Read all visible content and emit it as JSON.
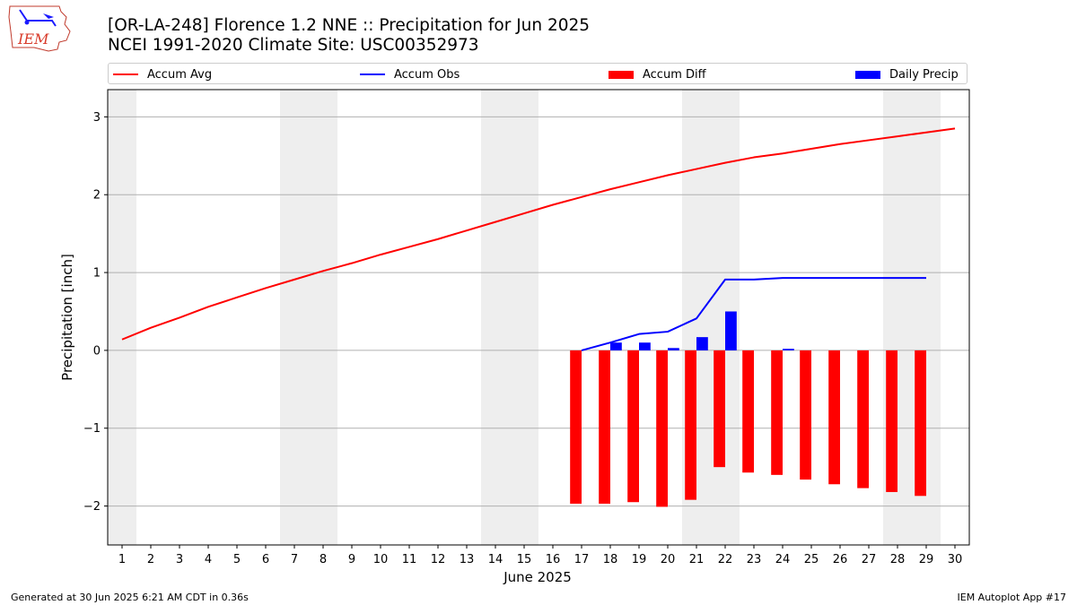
{
  "header": {
    "title_line1": "[OR-LA-248] Florence 1.2 NNE :: Precipitation for Jun 2025",
    "title_line2": "NCEI 1991-2020 Climate Site: USC00352973",
    "logo_text": "IEM"
  },
  "footer": {
    "left": "Generated at 30 Jun 2025 6:21 AM CDT in 0.36s",
    "right": "IEM Autoplot App #17"
  },
  "chart_data": {
    "type": "bar",
    "xlabel": "June 2025",
    "ylabel": "Precipitation [inch]",
    "ylim": [
      -2.5,
      3.35
    ],
    "xlim": [
      0.5,
      30.5
    ],
    "grid": true,
    "legend_placement": "top",
    "days": [
      1,
      2,
      3,
      4,
      5,
      6,
      7,
      8,
      9,
      10,
      11,
      12,
      13,
      14,
      15,
      16,
      17,
      18,
      19,
      20,
      21,
      22,
      23,
      24,
      25,
      26,
      27,
      28,
      29,
      30
    ],
    "yticks": [
      -2,
      -1,
      0,
      1,
      2,
      3
    ],
    "weekend_days": [
      1,
      7,
      8,
      14,
      15,
      21,
      22,
      28,
      29
    ],
    "series": [
      {
        "name": "Accum Avg",
        "kind": "line",
        "color": "#ff0000",
        "x": [
          1,
          2,
          3,
          4,
          5,
          6,
          7,
          8,
          9,
          10,
          11,
          12,
          13,
          14,
          15,
          16,
          17,
          18,
          19,
          20,
          21,
          22,
          23,
          24,
          25,
          26,
          27,
          28,
          29,
          30
        ],
        "values": [
          0.14,
          0.29,
          0.42,
          0.56,
          0.68,
          0.8,
          0.91,
          1.02,
          1.12,
          1.23,
          1.33,
          1.43,
          1.54,
          1.65,
          1.76,
          1.87,
          1.97,
          2.07,
          2.16,
          2.25,
          2.33,
          2.41,
          2.48,
          2.53,
          2.59,
          2.65,
          2.7,
          2.75,
          2.8,
          2.85
        ]
      },
      {
        "name": "Accum Obs",
        "kind": "line",
        "color": "#0000ff",
        "x": [
          17,
          18,
          19,
          20,
          21,
          22,
          23,
          24,
          25,
          26,
          27,
          28,
          29
        ],
        "values": [
          0.0,
          0.1,
          0.21,
          0.24,
          0.41,
          0.91,
          0.91,
          0.93,
          0.93,
          0.93,
          0.93,
          0.93,
          0.93
        ]
      },
      {
        "name": "Accum Diff",
        "kind": "bar",
        "color": "#ff0000",
        "x": [
          17,
          18,
          19,
          20,
          21,
          22,
          23,
          24,
          25,
          26,
          27,
          28,
          29
        ],
        "values": [
          -1.97,
          -1.97,
          -1.95,
          -2.01,
          -1.92,
          -1.5,
          -1.57,
          -1.6,
          -1.66,
          -1.72,
          -1.77,
          -1.82,
          -1.87
        ]
      },
      {
        "name": "Daily Precip",
        "kind": "bar",
        "color": "#0000ff",
        "x": [
          17,
          18,
          19,
          20,
          21,
          22,
          23,
          24,
          25,
          26,
          27,
          28,
          29
        ],
        "values": [
          0.0,
          0.1,
          0.1,
          0.03,
          0.17,
          0.5,
          0.0,
          0.02,
          0.0,
          0.0,
          0.0,
          0.0,
          0.0
        ]
      }
    ]
  }
}
